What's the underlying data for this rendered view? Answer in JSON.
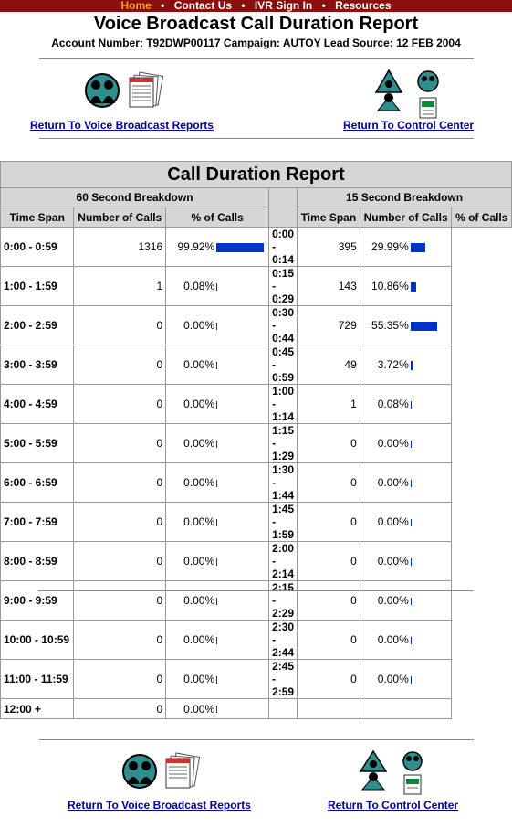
{
  "nav": {
    "items": [
      "Home",
      "Contact Us",
      "IVR Sign In",
      "Resources"
    ],
    "separator": "•"
  },
  "header": {
    "title": "Voice Broadcast Call Duration Report",
    "subtitle": "Account Number: T92DWP00117  Campaign: AUTOY  Lead Source: 12 FEB 2004"
  },
  "links": {
    "voice_broadcast": "Return To Voice Broadcast Reports",
    "control_center": "Return To Control Center"
  },
  "report": {
    "title": "Call Duration Report",
    "left_heading": "60 Second Breakdown",
    "right_heading": "15 Second Breakdown",
    "col_time_span": "Time Span",
    "col_number_calls": "Number of Calls",
    "col_pct_calls": "% of Calls",
    "left_rows": [
      {
        "span": "0:00 - 0:59",
        "calls": "1316",
        "pct": "99.92%",
        "frac": 0.9992
      },
      {
        "span": "1:00 - 1:59",
        "calls": "1",
        "pct": "0.08%",
        "frac": 0.0008
      },
      {
        "span": "2:00 - 2:59",
        "calls": "0",
        "pct": "0.00%",
        "frac": 0
      },
      {
        "span": "3:00 - 3:59",
        "calls": "0",
        "pct": "0.00%",
        "frac": 0
      },
      {
        "span": "4:00 - 4:59",
        "calls": "0",
        "pct": "0.00%",
        "frac": 0
      },
      {
        "span": "5:00 - 5:59",
        "calls": "0",
        "pct": "0.00%",
        "frac": 0
      },
      {
        "span": "6:00 - 6:59",
        "calls": "0",
        "pct": "0.00%",
        "frac": 0
      },
      {
        "span": "7:00 - 7:59",
        "calls": "0",
        "pct": "0.00%",
        "frac": 0
      },
      {
        "span": "8:00 - 8:59",
        "calls": "0",
        "pct": "0.00%",
        "frac": 0
      },
      {
        "span": "9:00 - 9:59",
        "calls": "0",
        "pct": "0.00%",
        "frac": 0
      },
      {
        "span": "10:00 - 10:59",
        "calls": "0",
        "pct": "0.00%",
        "frac": 0
      },
      {
        "span": "11:00 - 11:59",
        "calls": "0",
        "pct": "0.00%",
        "frac": 0
      },
      {
        "span": "12:00 +",
        "calls": "0",
        "pct": "0.00%",
        "frac": 0
      }
    ],
    "right_rows": [
      {
        "span": "0:00 - 0:14",
        "calls": "395",
        "pct": "29.99%",
        "frac": 0.2999
      },
      {
        "span": "0:15 - 0:29",
        "calls": "143",
        "pct": "10.86%",
        "frac": 0.1086
      },
      {
        "span": "0:30 - 0:44",
        "calls": "729",
        "pct": "55.35%",
        "frac": 0.5535
      },
      {
        "span": "0:45 - 0:59",
        "calls": "49",
        "pct": "3.72%",
        "frac": 0.0372
      },
      {
        "span": "1:00 - 1:14",
        "calls": "1",
        "pct": "0.08%",
        "frac": 0.0008
      },
      {
        "span": "1:15 - 1:29",
        "calls": "0",
        "pct": "0.00%",
        "frac": 0
      },
      {
        "span": "1:30 - 1:44",
        "calls": "0",
        "pct": "0.00%",
        "frac": 0
      },
      {
        "span": "1:45 - 1:59",
        "calls": "0",
        "pct": "0.00%",
        "frac": 0
      },
      {
        "span": "2:00 - 2:14",
        "calls": "0",
        "pct": "0.00%",
        "frac": 0
      },
      {
        "span": "2:15 - 2:29",
        "calls": "0",
        "pct": "0.00%",
        "frac": 0
      },
      {
        "span": "2:30 - 2:44",
        "calls": "0",
        "pct": "0.00%",
        "frac": 0
      },
      {
        "span": "2:45 - 2:59",
        "calls": "0",
        "pct": "0.00%",
        "frac": 0
      }
    ]
  },
  "icons": {
    "voice_broadcast": "people-silhouette-icon",
    "reports": "report-pages-icon",
    "control_center": "control-center-icon"
  },
  "colors": {
    "nav_bg": "#8b0f0f",
    "nav_home": "#f5a623",
    "bar": "#0033cc",
    "link": "#00009c"
  }
}
